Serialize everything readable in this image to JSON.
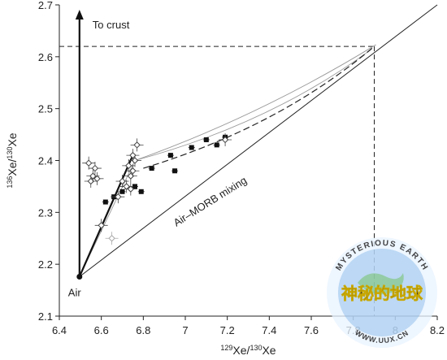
{
  "chart_data": {
    "type": "scatter",
    "title": "",
    "xlabel": "129Xe/130Xe",
    "ylabel": "136Xe/130Xe",
    "xlim": [
      6.4,
      8.2
    ],
    "ylim": [
      2.1,
      2.7
    ],
    "xticks": [
      {
        "value": 6.4,
        "label": "6.4"
      },
      {
        "value": 6.6,
        "label": "6.6"
      },
      {
        "value": 6.8,
        "label": "6.8"
      },
      {
        "value": 7.0,
        "label": "7"
      },
      {
        "value": 7.2,
        "label": "7.2"
      },
      {
        "value": 7.4,
        "label": "7.4"
      },
      {
        "value": 7.6,
        "label": "7.6"
      },
      {
        "value": 7.8,
        "label": "7.8"
      },
      {
        "value": 8.0,
        "label": "8"
      },
      {
        "value": 8.2,
        "label": "8.2"
      }
    ],
    "yticks": [
      {
        "value": 2.1,
        "label": "2.1"
      },
      {
        "value": 2.2,
        "label": "2.2"
      },
      {
        "value": 2.3,
        "label": "2.3"
      },
      {
        "value": 2.4,
        "label": "2.4"
      },
      {
        "value": 2.5,
        "label": "2.5"
      },
      {
        "value": 2.6,
        "label": "2.6"
      },
      {
        "value": 2.7,
        "label": "2.7"
      }
    ],
    "grid": false,
    "air_point": {
      "x": 6.496,
      "y": 2.176,
      "label": "Air"
    },
    "annotations": {
      "to_crust": "To crust",
      "mixing": "Air–MORB mixing"
    },
    "reference_lines": {
      "mantle_end": {
        "x": 7.9,
        "y": 2.62
      },
      "air_morb_mixing_end": {
        "x": 8.2,
        "y": 2.7
      },
      "steep_line_end": {
        "x": 6.75,
        "y": 2.41
      }
    },
    "series": [
      {
        "marker": "filled-square",
        "points": [
          {
            "x": 6.62,
            "y": 2.32
          },
          {
            "x": 6.66,
            "y": 2.33
          },
          {
            "x": 6.7,
            "y": 2.34
          },
          {
            "x": 6.76,
            "y": 2.35
          },
          {
            "x": 6.79,
            "y": 2.34
          },
          {
            "x": 6.84,
            "y": 2.385
          },
          {
            "x": 6.93,
            "y": 2.41
          },
          {
            "x": 6.95,
            "y": 2.38
          },
          {
            "x": 7.03,
            "y": 2.425
          },
          {
            "x": 7.1,
            "y": 2.44
          },
          {
            "x": 7.15,
            "y": 2.43
          },
          {
            "x": 7.19,
            "y": 2.445
          }
        ]
      },
      {
        "marker": "open-diamond",
        "points": [
          {
            "x": 6.54,
            "y": 2.395
          },
          {
            "x": 6.55,
            "y": 2.36
          },
          {
            "x": 6.56,
            "y": 2.37
          },
          {
            "x": 6.57,
            "y": 2.385
          },
          {
            "x": 6.58,
            "y": 2.365
          },
          {
            "x": 6.6,
            "y": 2.275
          },
          {
            "x": 6.68,
            "y": 2.33
          },
          {
            "x": 6.7,
            "y": 2.36
          },
          {
            "x": 6.72,
            "y": 2.35
          },
          {
            "x": 6.73,
            "y": 2.39
          },
          {
            "x": 6.74,
            "y": 2.37
          },
          {
            "x": 6.75,
            "y": 2.38
          },
          {
            "x": 6.76,
            "y": 2.4
          },
          {
            "x": 6.77,
            "y": 2.43
          },
          {
            "x": 6.75,
            "y": 2.41
          },
          {
            "x": 6.74,
            "y": 2.345
          },
          {
            "x": 7.19,
            "y": 2.44
          }
        ]
      },
      {
        "marker": "grey-diamond",
        "points": [
          {
            "x": 6.65,
            "y": 2.25
          }
        ]
      }
    ],
    "watermark": {
      "top": "MYSTERIOUS EARTH",
      "middle": "神秘的地球",
      "bottom": "WWW.UUX.CN"
    }
  }
}
